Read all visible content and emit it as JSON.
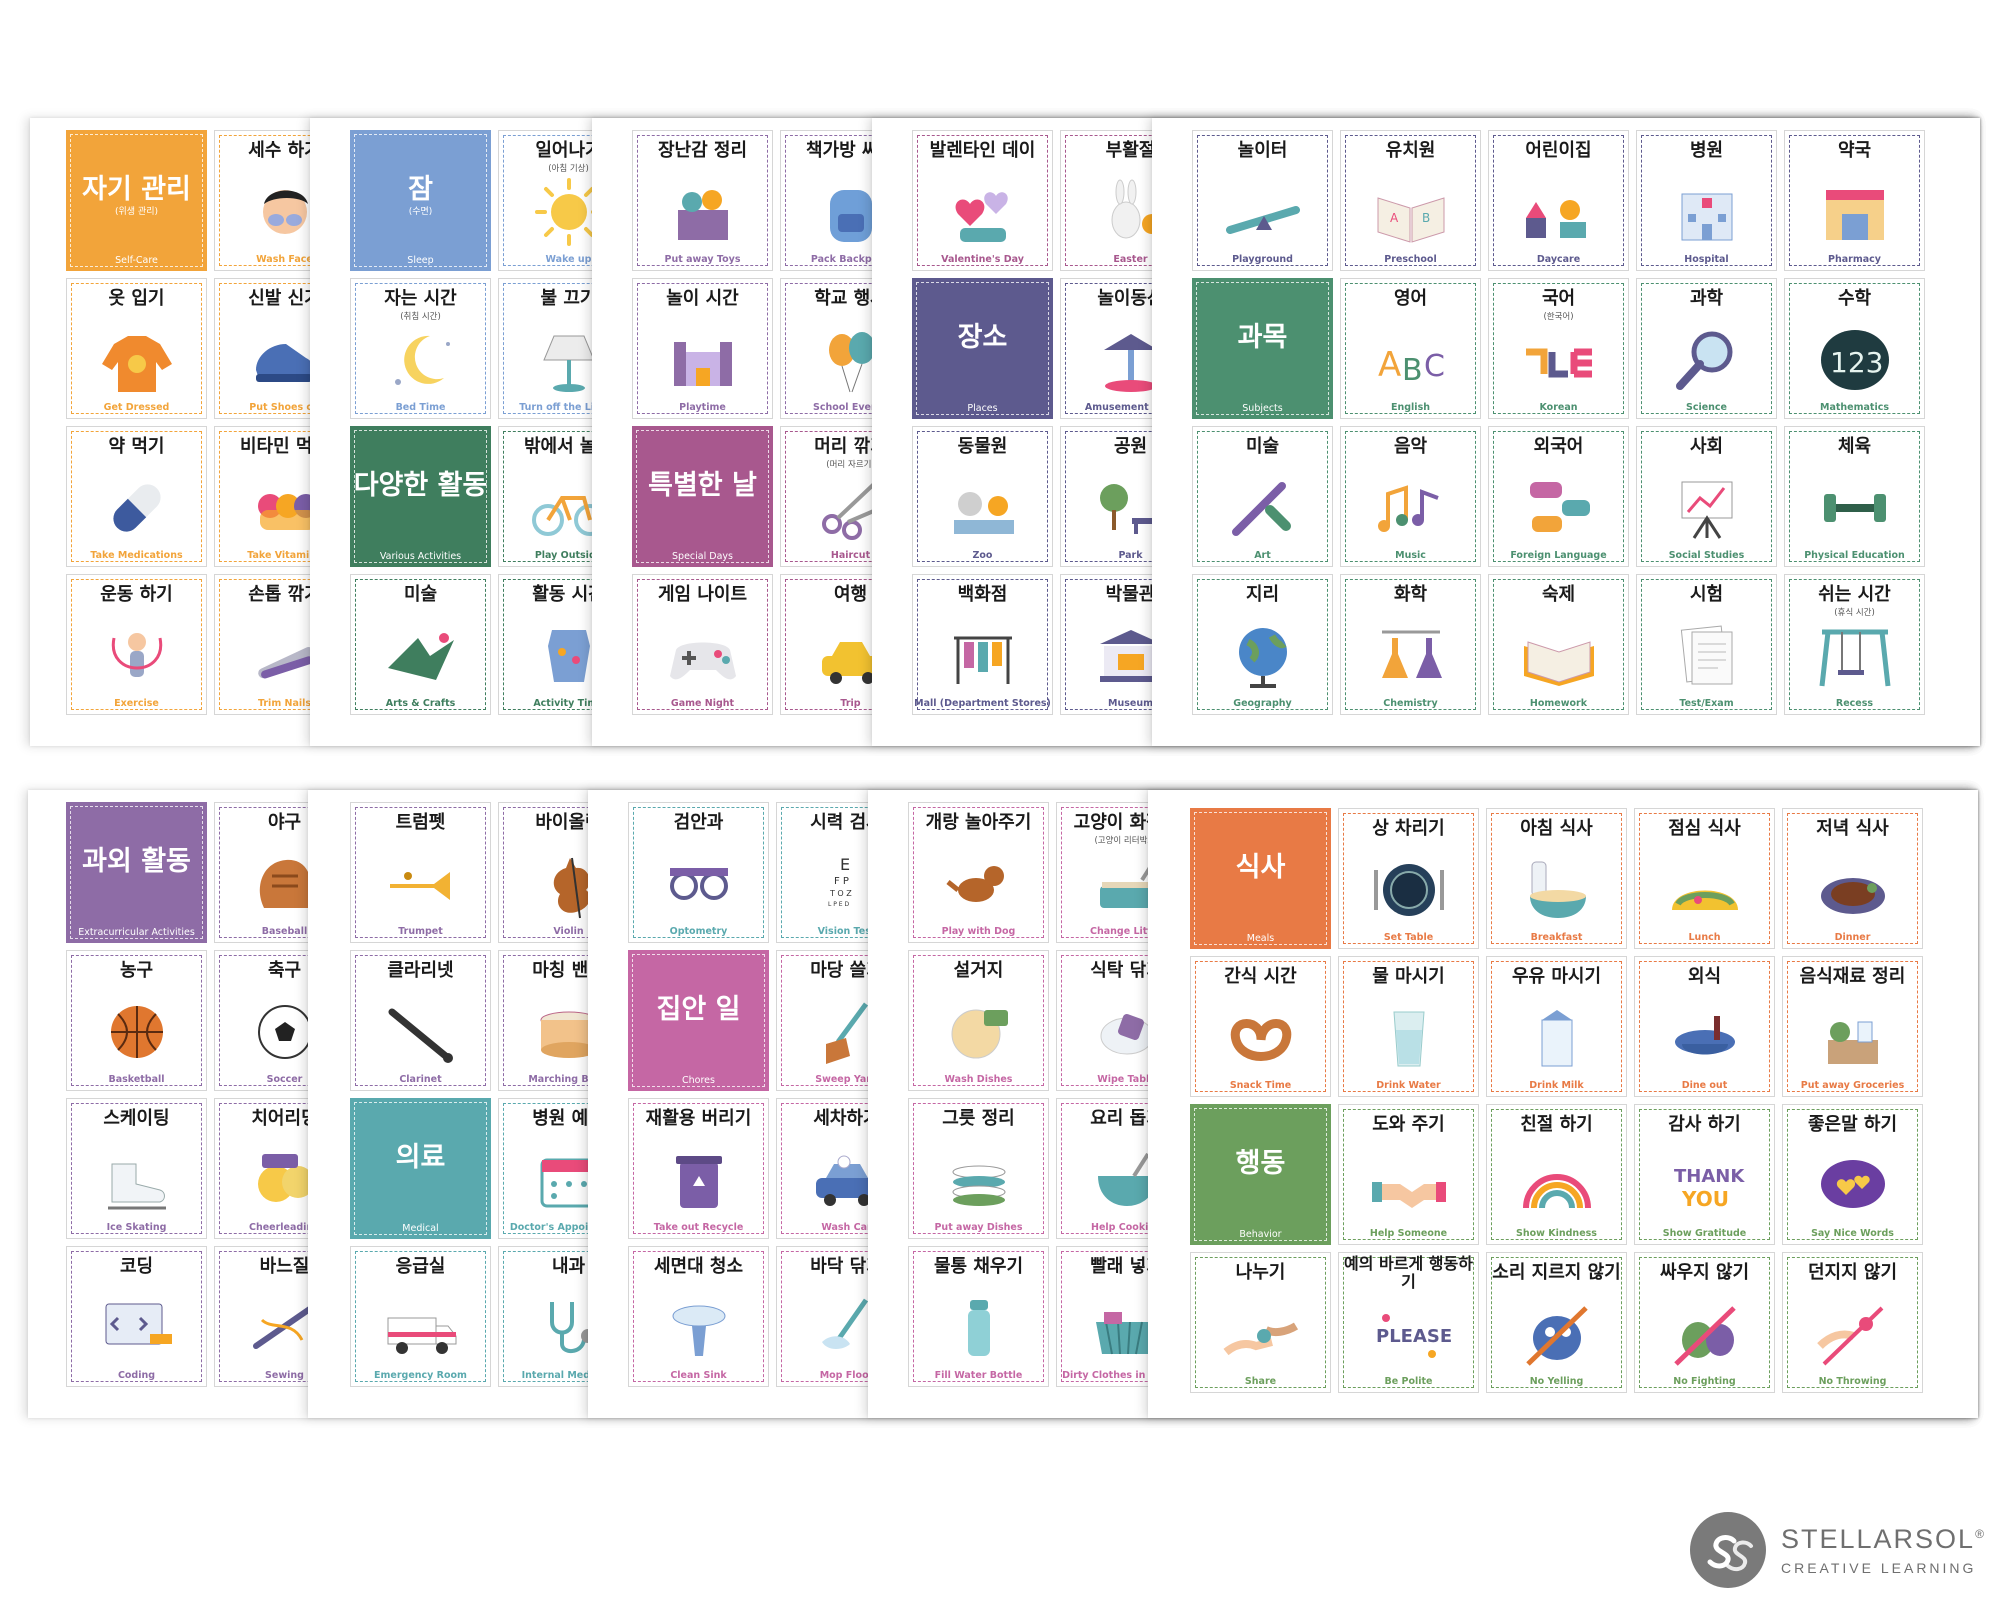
{
  "sheets": [
    {
      "cards": [
        {
          "cat": true,
          "ko": "자기 관리",
          "sub": "(위생 관리)",
          "en": "Self-Care",
          "bg": "#F2A43A"
        },
        {
          "ko": "세수 하기",
          "en": "Wash Face",
          "c": "#F2A43A",
          "icon": "face-wash"
        },
        {
          "ko": "옷 입기",
          "en": "Get Dressed",
          "c": "#F2A43A",
          "icon": "sweater"
        },
        {
          "ko": "신발 신기",
          "en": "Put Shoes on",
          "c": "#F2A43A",
          "icon": "shoes"
        },
        {
          "ko": "약 먹기",
          "en": "Take Medications",
          "c": "#F2A43A",
          "icon": "pill"
        },
        {
          "ko": "비타민 먹기",
          "en": "Take Vitamins",
          "c": "#F2A43A",
          "icon": "gummy"
        },
        {
          "ko": "운동 하기",
          "en": "Exercise",
          "c": "#F2A43A",
          "icon": "jump-rope"
        },
        {
          "ko": "손톱 깎기",
          "en": "Trim Nails",
          "c": "#F2A43A",
          "icon": "nail-clipper"
        }
      ]
    },
    {
      "cards": [
        {
          "cat": true,
          "ko": "잠",
          "sub": "(수면)",
          "en": "Sleep",
          "bg": "#7B9FD3"
        },
        {
          "ko": "일어나기",
          "sub": "(아침 기상)",
          "en": "Wake up",
          "c": "#7B9FD3",
          "icon": "sun"
        },
        {
          "ko": "자는 시간",
          "sub": "(취침 시간)",
          "en": "Bed Time",
          "c": "#7B9FD3",
          "icon": "moon"
        },
        {
          "ko": "불 끄기",
          "en": "Turn off the Lights",
          "c": "#7B9FD3",
          "icon": "lamp"
        },
        {
          "cat": true,
          "ko": "다양한 활동",
          "en": "Various Activities",
          "bg": "#3F7E5E"
        },
        {
          "ko": "밖에서 놀기",
          "en": "Play Outside",
          "c": "#3F7E5E",
          "icon": "bicycle"
        },
        {
          "ko": "미술",
          "en": "Arts & Crafts",
          "c": "#3F7E5E",
          "icon": "origami"
        },
        {
          "ko": "활동 시간",
          "en": "Activity Time",
          "c": "#3F7E5E",
          "icon": "apron"
        }
      ]
    },
    {
      "cards": [
        {
          "ko": "장난감 정리",
          "en": "Put away Toys",
          "c": "#8E6CA6",
          "icon": "toy-box"
        },
        {
          "ko": "책가방 싸기",
          "en": "Pack Backpack",
          "c": "#8E6CA6",
          "icon": "backpack"
        },
        {
          "ko": "놀이 시간",
          "en": "Playtime",
          "c": "#8E6CA6",
          "icon": "castle"
        },
        {
          "ko": "학교 행사",
          "en": "School Events",
          "c": "#8E6CA6",
          "icon": "balloons"
        },
        {
          "cat": true,
          "ko": "특별한 날",
          "en": "Special Days",
          "bg": "#A8588E"
        },
        {
          "ko": "머리 깎기",
          "sub": "(머리 자르기)",
          "en": "Haircut",
          "c": "#A8588E",
          "icon": "scissors"
        },
        {
          "ko": "게임 나이트",
          "en": "Game Night",
          "c": "#A8588E",
          "icon": "gamepad"
        },
        {
          "ko": "여행",
          "en": "Trip",
          "c": "#A8588E",
          "icon": "car"
        }
      ]
    },
    {
      "cards": [
        {
          "ko": "발렌타인 데이",
          "en": "Valentine's Day",
          "c": "#A8588E",
          "icon": "hearts"
        },
        {
          "ko": "부활절",
          "en": "Easter",
          "c": "#A8588E",
          "icon": "bunny"
        },
        {
          "cat": true,
          "ko": "장소",
          "en": "Places",
          "bg": "#5D5A8E"
        },
        {
          "ko": "놀이동산",
          "en": "Amusement Park",
          "c": "#5D5A8E",
          "icon": "carousel"
        },
        {
          "ko": "동물원",
          "en": "Zoo",
          "c": "#5D5A8E",
          "icon": "zoo"
        },
        {
          "ko": "공원",
          "en": "Park",
          "c": "#5D5A8E",
          "icon": "park"
        },
        {
          "ko": "백화점",
          "en": "Mall (Department Stores)",
          "c": "#5D5A8E",
          "icon": "clothes-rack"
        },
        {
          "ko": "박물관",
          "en": "Museum",
          "c": "#5D5A8E",
          "icon": "museum"
        }
      ]
    },
    {
      "cards": [
        {
          "ko": "놀이터",
          "en": "Playground",
          "c": "#5D5A8E",
          "icon": "seesaw"
        },
        {
          "ko": "유치원",
          "en": "Preschool",
          "c": "#5D5A8E",
          "icon": "book"
        },
        {
          "ko": "어린이집",
          "en": "Daycare",
          "c": "#5D5A8E",
          "icon": "blocks"
        },
        {
          "ko": "병원",
          "en": "Hospital",
          "c": "#5D5A8E",
          "icon": "hospital"
        },
        {
          "ko": "약국",
          "en": "Pharmacy",
          "c": "#5D5A8E",
          "icon": "pharmacy"
        },
        {
          "cat": true,
          "ko": "과목",
          "en": "Subjects",
          "bg": "#4C9070"
        },
        {
          "ko": "영어",
          "en": "English",
          "c": "#4C9070",
          "icon": "abc"
        },
        {
          "ko": "국어",
          "sub": "(한국어)",
          "en": "Korean",
          "c": "#4C9070",
          "icon": "hangul"
        },
        {
          "ko": "과학",
          "en": "Science",
          "c": "#4C9070",
          "icon": "magnifier"
        },
        {
          "ko": "수학",
          "en": "Mathematics",
          "c": "#4C9070",
          "icon": "numbers"
        },
        {
          "ko": "미술",
          "en": "Art",
          "c": "#4C9070",
          "icon": "paintbrush"
        },
        {
          "ko": "음악",
          "en": "Music",
          "c": "#4C9070",
          "icon": "music-notes"
        },
        {
          "ko": "외국어",
          "en": "Foreign Language",
          "c": "#4C9070",
          "icon": "speech-bubbles"
        },
        {
          "ko": "사회",
          "en": "Social Studies",
          "c": "#4C9070",
          "icon": "easel"
        },
        {
          "ko": "체육",
          "en": "Physical Education",
          "c": "#4C9070",
          "icon": "dumbbell"
        },
        {
          "ko": "지리",
          "en": "Geography",
          "c": "#4C9070",
          "icon": "globe"
        },
        {
          "ko": "화학",
          "en": "Chemistry",
          "c": "#4C9070",
          "icon": "flasks"
        },
        {
          "ko": "숙제",
          "en": "Homework",
          "c": "#4C9070",
          "icon": "open-book"
        },
        {
          "ko": "시험",
          "en": "Test/Exam",
          "c": "#4C9070",
          "icon": "papers"
        },
        {
          "ko": "쉬는 시간",
          "sub": "(휴식 시간)",
          "en": "Recess",
          "c": "#4C9070",
          "icon": "swing"
        }
      ]
    },
    {
      "cards": [
        {
          "cat": true,
          "ko": "과외 활동",
          "en": "Extracurricular Activities",
          "bg": "#8E6CA6"
        },
        {
          "ko": "야구",
          "en": "Baseball",
          "c": "#8E6CA6",
          "icon": "glove"
        },
        {
          "ko": "농구",
          "en": "Basketball",
          "c": "#8E6CA6",
          "icon": "basketball"
        },
        {
          "ko": "축구",
          "en": "Soccer",
          "c": "#8E6CA6",
          "icon": "soccer-ball"
        },
        {
          "ko": "스케이팅",
          "en": "Ice Skating",
          "c": "#8E6CA6",
          "icon": "skate"
        },
        {
          "ko": "치어리딩",
          "en": "Cheerleading",
          "c": "#8E6CA6",
          "icon": "pompom"
        },
        {
          "ko": "코딩",
          "en": "Coding",
          "c": "#8E6CA6",
          "icon": "code-screen"
        },
        {
          "ko": "바느질",
          "en": "Sewing",
          "c": "#8E6CA6",
          "icon": "sewing"
        }
      ]
    },
    {
      "cards": [
        {
          "ko": "트럼펫",
          "en": "Trumpet",
          "c": "#8E6CA6",
          "icon": "trumpet"
        },
        {
          "ko": "바이올린",
          "en": "Violin",
          "c": "#8E6CA6",
          "icon": "violin"
        },
        {
          "ko": "클라리넷",
          "en": "Clarinet",
          "c": "#8E6CA6",
          "icon": "clarinet"
        },
        {
          "ko": "마칭 밴드",
          "en": "Marching Band",
          "c": "#8E6CA6",
          "icon": "drum"
        },
        {
          "cat": true,
          "ko": "의료",
          "en": "Medical",
          "bg": "#5AA9AE"
        },
        {
          "ko": "병원 예약",
          "en": "Doctor's Appointment",
          "c": "#5AA9AE",
          "icon": "calendar"
        },
        {
          "ko": "응급실",
          "en": "Emergency Room",
          "c": "#5AA9AE",
          "icon": "ambulance"
        },
        {
          "ko": "내과",
          "en": "Internal Medicine",
          "c": "#5AA9AE",
          "icon": "stethoscope"
        }
      ]
    },
    {
      "cards": [
        {
          "ko": "검안과",
          "en": "Optometry",
          "c": "#5AA9AE",
          "icon": "eye-device"
        },
        {
          "ko": "시력 검사",
          "en": "Vision Test",
          "c": "#5AA9AE",
          "icon": "eye-chart"
        },
        {
          "cat": true,
          "ko": "집안 일",
          "en": "Chores",
          "bg": "#C567A4"
        },
        {
          "ko": "마당 쓸기",
          "en": "Sweep Yard",
          "c": "#C567A4",
          "icon": "broom"
        },
        {
          "ko": "재활용 버리기",
          "en": "Take out Recycle",
          "c": "#C567A4",
          "icon": "recycle-bin"
        },
        {
          "ko": "세차하기",
          "en": "Wash Car",
          "c": "#C567A4",
          "icon": "car-wash"
        },
        {
          "ko": "세면대 청소",
          "en": "Clean Sink",
          "c": "#C567A4",
          "icon": "sink"
        },
        {
          "ko": "바닥 닦기",
          "en": "Mop Floor",
          "c": "#C567A4",
          "icon": "mop"
        }
      ]
    },
    {
      "cards": [
        {
          "ko": "개랑 놀아주기",
          "en": "Play with Dog",
          "c": "#C567A4",
          "icon": "dog"
        },
        {
          "ko": "고양이 화장실",
          "sub": "(고양이 리터박스)",
          "en": "Change Litter",
          "c": "#C567A4",
          "icon": "litter"
        },
        {
          "ko": "설거지",
          "en": "Wash Dishes",
          "c": "#C567A4",
          "icon": "dish-sponge"
        },
        {
          "ko": "식탁 닦기",
          "en": "Wipe Table",
          "c": "#C567A4",
          "icon": "cloth"
        },
        {
          "ko": "그릇 정리",
          "en": "Put away Dishes",
          "c": "#C567A4",
          "icon": "plates"
        },
        {
          "ko": "요리 돕기",
          "en": "Help Cooking",
          "c": "#C567A4",
          "icon": "bowl"
        },
        {
          "ko": "물통 채우기",
          "en": "Fill Water Bottle",
          "c": "#C567A4",
          "icon": "bottle"
        },
        {
          "ko": "빨래 넣기",
          "en": "Dirty Clothes in Hamper",
          "c": "#C567A4",
          "icon": "basket"
        }
      ]
    },
    {
      "cards": [
        {
          "cat": true,
          "ko": "식사",
          "en": "Meals",
          "bg": "#E87A45"
        },
        {
          "ko": "상 차리기",
          "en": "Set Table",
          "c": "#E87A45",
          "icon": "plate-setting"
        },
        {
          "ko": "아침 식사",
          "en": "Breakfast",
          "c": "#E87A45",
          "icon": "cereal"
        },
        {
          "ko": "점심 식사",
          "en": "Lunch",
          "c": "#E87A45",
          "icon": "taco"
        },
        {
          "ko": "저녁 식사",
          "en": "Dinner",
          "c": "#E87A45",
          "icon": "steak"
        },
        {
          "ko": "간식 시간",
          "en": "Snack Time",
          "c": "#E87A45",
          "icon": "pretzel"
        },
        {
          "ko": "물 마시기",
          "en": "Drink Water",
          "c": "#E87A45",
          "icon": "glass"
        },
        {
          "ko": "우유 마시기",
          "en": "Drink Milk",
          "c": "#E87A45",
          "icon": "milk"
        },
        {
          "ko": "외식",
          "en": "Dine out",
          "c": "#E87A45",
          "icon": "table"
        },
        {
          "ko": "음식재료 정리",
          "en": "Put away Groceries",
          "c": "#E87A45",
          "icon": "groceries"
        },
        {
          "cat": true,
          "ko": "행동",
          "en": "Behavior",
          "bg": "#6C9F5D"
        },
        {
          "ko": "도와 주기",
          "en": "Help Someone",
          "c": "#6C9F5D",
          "icon": "handshake"
        },
        {
          "ko": "친절 하기",
          "en": "Show Kindness",
          "c": "#6C9F5D",
          "icon": "rainbow"
        },
        {
          "ko": "감사 하기",
          "en": "Show Gratitude",
          "c": "#6C9F5D",
          "icon": "thank-you"
        },
        {
          "ko": "좋은말 하기",
          "en": "Say Nice Words",
          "c": "#6C9F5D",
          "icon": "heart-bubble"
        },
        {
          "ko": "나누기",
          "en": "Share",
          "c": "#6C9F5D",
          "icon": "share-hands"
        },
        {
          "ko": "예의 바르게 행동하기",
          "en": "Be Polite",
          "c": "#6C9F5D",
          "icon": "please",
          "two_line": true
        },
        {
          "ko": "소리 지르지 않기",
          "en": "No Yelling",
          "c": "#6C9F5D",
          "icon": "monster-blue"
        },
        {
          "ko": "싸우지 않기",
          "en": "No Fighting",
          "c": "#6C9F5D",
          "icon": "monster-green"
        },
        {
          "ko": "던지지 않기",
          "en": "No Throwing",
          "c": "#6C9F5D",
          "icon": "throw"
        }
      ]
    }
  ],
  "logo": {
    "brand": "STELLARSOL",
    "reg": "®",
    "tagline": "CREATIVE LEARNING",
    "monogram": "SS",
    "color": "#6f6f6f"
  }
}
